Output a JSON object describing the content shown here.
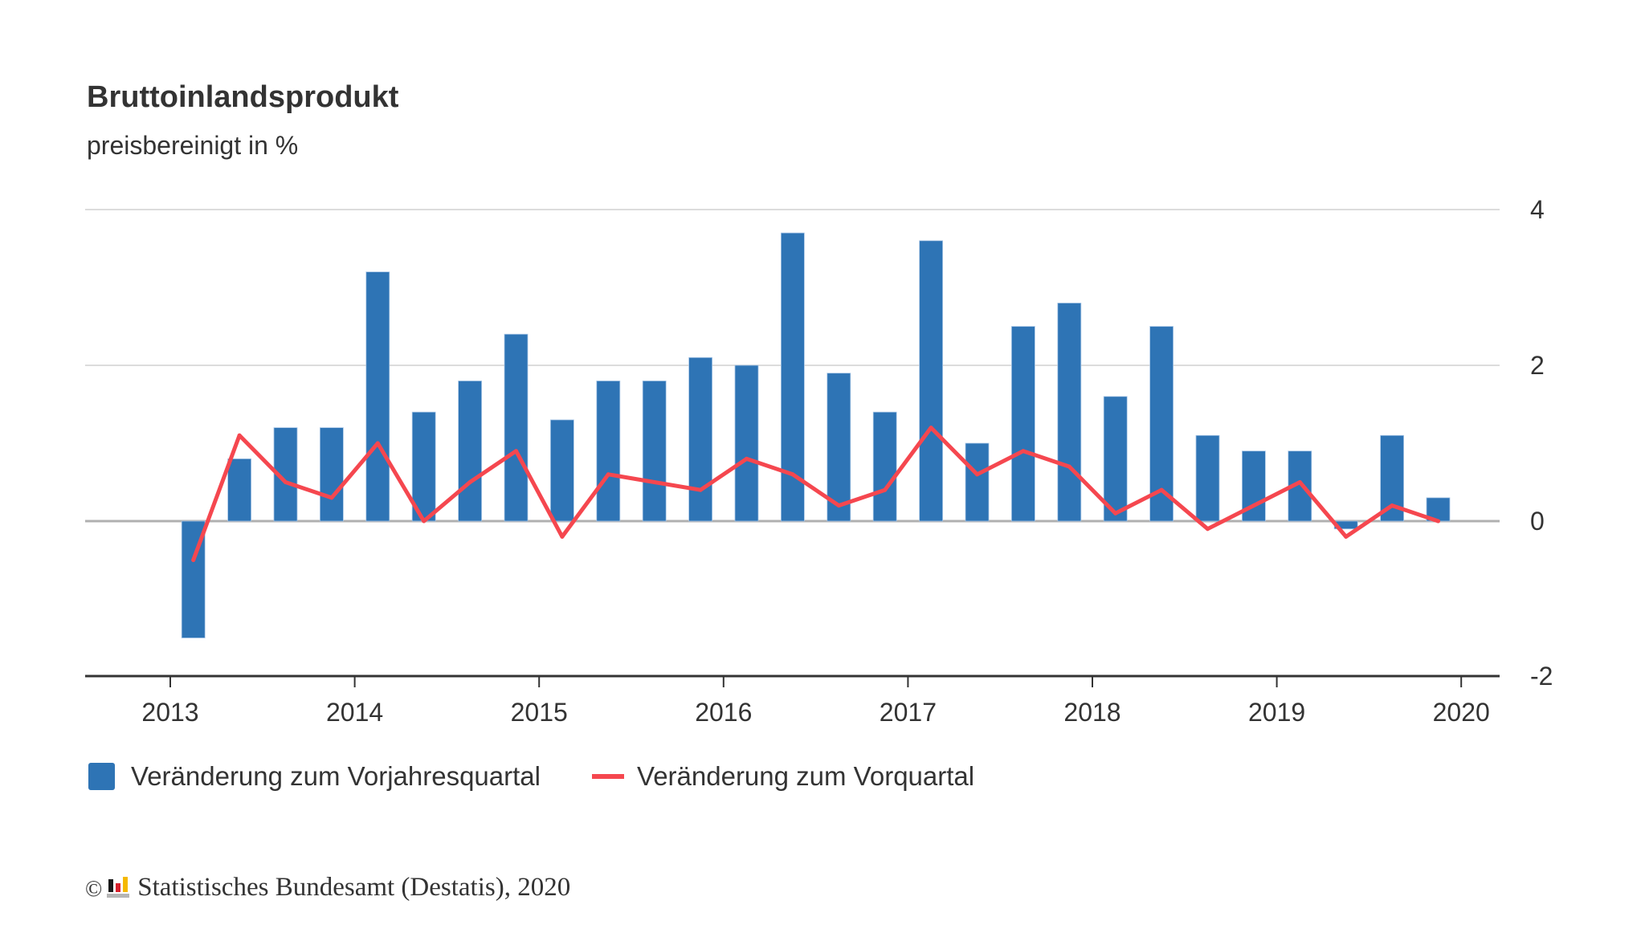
{
  "header": {
    "title": "Bruttoinlandsprodukt",
    "subtitle": "preisbereinigt in %"
  },
  "colors": {
    "bars": "#2e74b5",
    "line": "#f5474f",
    "gridline": "#dcdcdc",
    "zero_line": "#b0b0b0",
    "axis": "#333333",
    "logo_black": "#1a1a1a",
    "logo_red": "#d71f2b",
    "logo_gold": "#f5b800",
    "logo_grey": "#b5b5b5"
  },
  "legend": {
    "items": [
      {
        "label": "Veränderung zum Vorjahresquartal",
        "type": "bar"
      },
      {
        "label": "Veränderung zum Vorquartal",
        "type": "line"
      }
    ]
  },
  "footer": {
    "copyright_symbol": "©",
    "source": "Statistisches Bundesamt (Destatis), 2020",
    "logo_icon": "destatis-logo-icon"
  },
  "chart_data": {
    "type": "bar",
    "title": "Bruttoinlandsprodukt",
    "subtitle": "preisbereinigt in %",
    "xlabel": "",
    "ylabel": "",
    "x_ticks": [
      "2013",
      "2014",
      "2015",
      "2016",
      "2017",
      "2018",
      "2019",
      "2020"
    ],
    "y_ticks": [
      4,
      2,
      0,
      -2
    ],
    "y_axis_position": "right",
    "ylim": [
      -2,
      4
    ],
    "grid": true,
    "legend_position": "bottom-left",
    "categories": [
      "2013 Q1",
      "2013 Q2",
      "2013 Q3",
      "2013 Q4",
      "2014 Q1",
      "2014 Q2",
      "2014 Q3",
      "2014 Q4",
      "2015 Q1",
      "2015 Q2",
      "2015 Q3",
      "2015 Q4",
      "2016 Q1",
      "2016 Q2",
      "2016 Q3",
      "2016 Q4",
      "2017 Q1",
      "2017 Q2",
      "2017 Q3",
      "2017 Q4",
      "2018 Q1",
      "2018 Q2",
      "2018 Q3",
      "2018 Q4",
      "2019 Q1",
      "2019 Q2",
      "2019 Q3",
      "2019 Q4"
    ],
    "series": [
      {
        "name": "Veränderung zum Vorjahresquartal",
        "type": "bar",
        "values": [
          -1.5,
          0.8,
          1.2,
          1.2,
          3.2,
          1.4,
          1.8,
          2.4,
          1.3,
          1.8,
          1.8,
          2.1,
          2.0,
          3.7,
          1.9,
          1.4,
          3.6,
          1.0,
          2.5,
          2.8,
          1.6,
          2.5,
          1.1,
          0.9,
          0.9,
          -0.1,
          1.1,
          0.3
        ]
      },
      {
        "name": "Veränderung zum Vorquartal",
        "type": "line",
        "values": [
          -0.5,
          1.1,
          0.5,
          0.3,
          1.0,
          0.0,
          0.5,
          0.9,
          -0.2,
          0.6,
          0.5,
          0.4,
          0.8,
          0.6,
          0.2,
          0.4,
          1.2,
          0.6,
          0.9,
          0.7,
          0.1,
          0.4,
          -0.1,
          0.2,
          0.5,
          -0.2,
          0.2,
          0.0
        ]
      }
    ]
  }
}
